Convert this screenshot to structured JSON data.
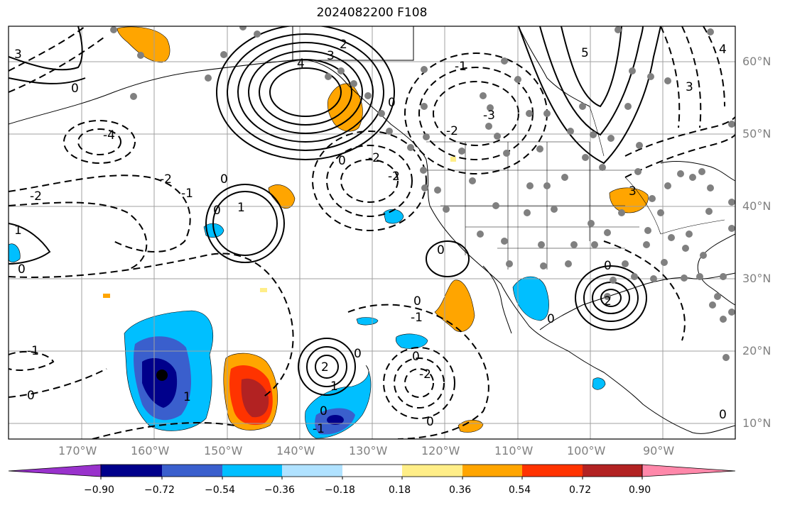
{
  "title": "2024082200 F108",
  "map": {
    "lon_range": [
      -180,
      -80
    ],
    "lat_range": [
      8,
      65
    ],
    "lon_labels": [
      "170°W",
      "160°W",
      "150°W",
      "140°W",
      "130°W",
      "120°W",
      "110°W",
      "100°W",
      "90°W"
    ],
    "lat_labels": [
      "60°N",
      "50°N",
      "40°N",
      "30°N",
      "20°N",
      "10°N"
    ],
    "contour_labels": [
      "2",
      "3",
      "4",
      "5",
      "0",
      "-1",
      "-2",
      "-3",
      "-4",
      "1"
    ],
    "colors": {
      "grid": "#a0a0a0",
      "contour": "#000000",
      "station_dot": "#808080",
      "coast": "#000000"
    }
  },
  "colorbar": {
    "ticks": [
      "−0.90",
      "−0.72",
      "−0.54",
      "−0.36",
      "−0.18",
      "0.18",
      "0.36",
      "0.54",
      "0.72",
      "0.90"
    ],
    "colors": [
      "#9932cc",
      "#00008b",
      "#3a5fcd",
      "#00bfff",
      "#b0e2ff",
      "#ffffff",
      "#ffee88",
      "#ffa500",
      "#ff3300",
      "#b22222",
      "#ff88aa"
    ]
  }
}
